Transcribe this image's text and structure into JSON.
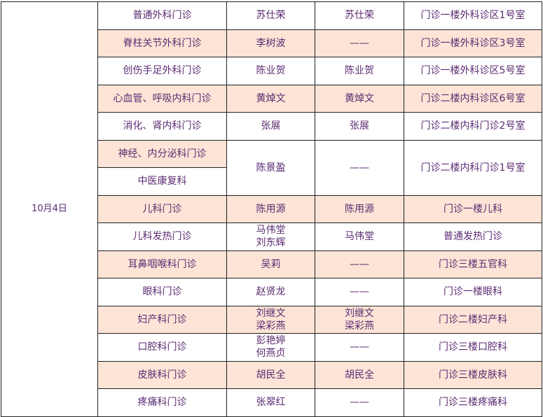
{
  "date": "10月4日",
  "colors": {
    "text": "#5b2b72",
    "highlight": "#fce4d6",
    "border": "#222222"
  },
  "rows": [
    {
      "dept": "普通外科门诊",
      "doctors": [
        "苏仕荣"
      ],
      "expert": [
        "苏仕荣"
      ],
      "location": "门诊一楼外科诊区1号室",
      "highlight": false
    },
    {
      "dept": "脊柱关节外科门诊",
      "doctors": [
        "李树波"
      ],
      "expert": [
        "——"
      ],
      "location": "门诊一楼外科诊区3号室",
      "highlight": true
    },
    {
      "dept": "创伤手足外科门诊",
      "doctors": [
        "陈业贺"
      ],
      "expert": [
        "陈业贺"
      ],
      "location": "门诊一楼外科诊区5号室",
      "highlight": false
    },
    {
      "dept": "心血管、呼吸内科门诊",
      "doctors": [
        "黄焯文"
      ],
      "expert": [
        "黄焯文"
      ],
      "location": "门诊二楼内科诊区6号室",
      "highlight": true
    },
    {
      "dept": "消化、肾内科门诊",
      "doctors": [
        "张展"
      ],
      "expert": [
        "张展"
      ],
      "location": "门诊二楼内科门诊2号室",
      "highlight": false
    },
    {
      "dept": "神经、内分泌科门诊",
      "dept2": "中医康复科",
      "doctors": [
        "陈景盈"
      ],
      "expert": [
        "——"
      ],
      "location": "门诊二楼内科门诊1号室",
      "highlight": true,
      "merged": true
    },
    {
      "dept": "儿科门诊",
      "doctors": [
        "陈用源"
      ],
      "expert": [
        "陈用源"
      ],
      "location": "门诊一楼儿科",
      "highlight": true
    },
    {
      "dept": "儿科发热门诊",
      "doctors": [
        "马伟堂",
        "刘东辉"
      ],
      "expert": [
        "马伟堂"
      ],
      "location": "普通发热门诊",
      "highlight": false
    },
    {
      "dept": "耳鼻咽喉科门诊",
      "doctors": [
        "吴莉"
      ],
      "expert": [
        "——"
      ],
      "location": "门诊三楼五官科",
      "highlight": true
    },
    {
      "dept": "眼科门诊",
      "doctors": [
        "赵贤龙"
      ],
      "expert": [
        "——"
      ],
      "location": "门诊一楼眼科",
      "highlight": false
    },
    {
      "dept": "妇产科门诊",
      "doctors": [
        "刘继文",
        "梁彩燕"
      ],
      "expert": [
        "刘继文",
        "梁彩燕"
      ],
      "location": "门诊二楼妇产科",
      "highlight": true
    },
    {
      "dept": "口腔科门诊",
      "doctors": [
        "彭艳婷",
        "何燕贞"
      ],
      "expert": [
        "——"
      ],
      "location": "门诊三楼口腔科",
      "highlight": false
    },
    {
      "dept": "皮肤科门诊",
      "doctors": [
        "胡民全"
      ],
      "expert": [
        "胡民全"
      ],
      "location": "门诊三楼皮肤科",
      "highlight": true
    },
    {
      "dept": "疼痛科门诊",
      "doctors": [
        "张翠红"
      ],
      "expert": [
        "——"
      ],
      "location": "门诊三楼疼痛科",
      "highlight": false
    }
  ]
}
